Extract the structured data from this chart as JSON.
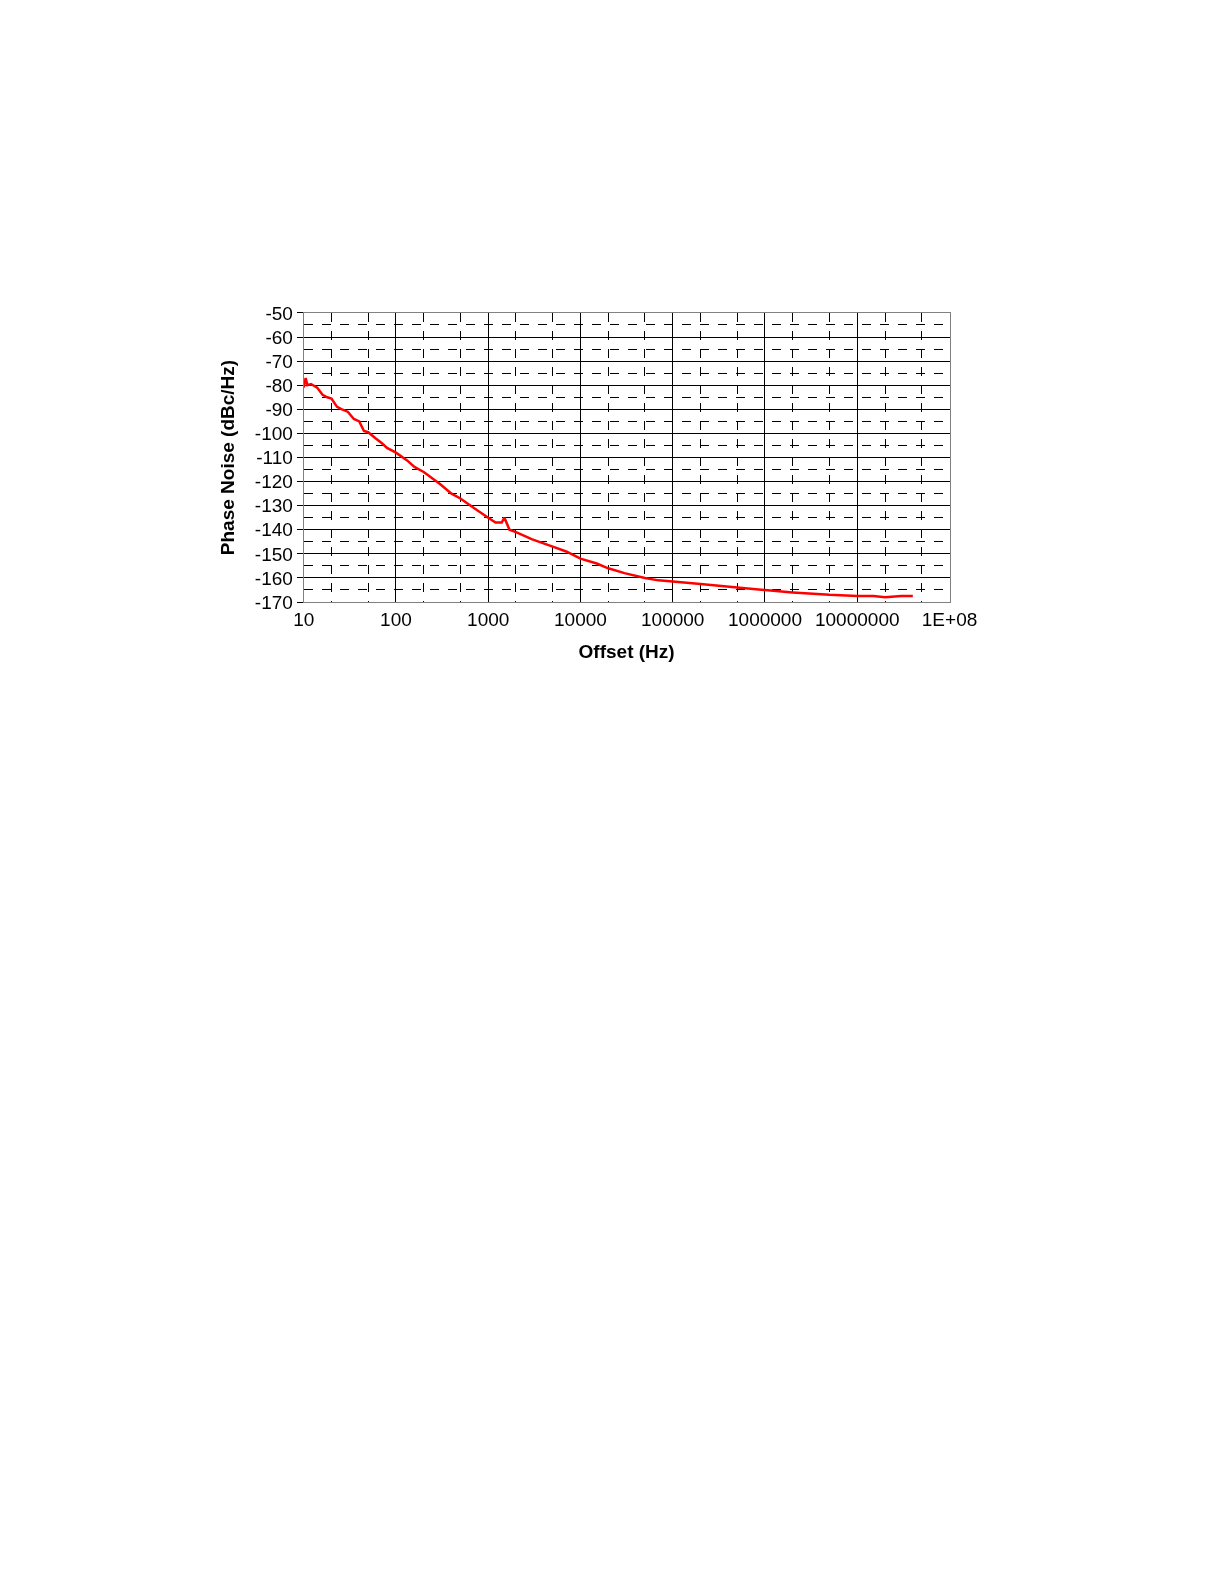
{
  "chart_data": {
    "type": "line",
    "xlabel": "Offset (Hz)",
    "ylabel": "Phase Noise (dBc/Hz)",
    "log": "x",
    "grid": true,
    "line_style": "solid",
    "marker": "none",
    "x": [
      10,
      10.5,
      11,
      12,
      14,
      16,
      18,
      20,
      23,
      26,
      30,
      35,
      40,
      45,
      50,
      60,
      70,
      80,
      100,
      130,
      160,
      200,
      300,
      400,
      500,
      700,
      1000,
      1200,
      1400,
      1500,
      1700,
      2000,
      3000,
      5000,
      7000,
      10000,
      15000,
      20000,
      30000,
      50000,
      70000,
      100000,
      200000,
      500000,
      1000000,
      2000000,
      5000000,
      10000000,
      15000000,
      20000000,
      30000000,
      40000000
    ],
    "series": [
      {
        "color": "#ff0000",
        "values": [
          -81,
          -77,
          -80,
          -79.5,
          -81,
          -84,
          -85,
          -85.5,
          -89,
          -90,
          -91,
          -94,
          -95,
          -99,
          -99.5,
          -102,
          -104,
          -106,
          -108,
          -111,
          -114,
          -116,
          -121,
          -125,
          -127,
          -131,
          -135,
          -137,
          -137,
          -135,
          -140,
          -141,
          -144,
          -147,
          -149,
          -152,
          -154,
          -156,
          -158,
          -160,
          -161,
          -161.5,
          -162.5,
          -164,
          -165,
          -166,
          -167,
          -167.5,
          -167.5,
          -168,
          -167.5,
          -167.5
        ]
      }
    ],
    "xlim": [
      10,
      100000000
    ],
    "xticks": [
      10,
      100,
      1000,
      10000,
      100000,
      1000000,
      10000000,
      {
        "value": 100000000,
        "label": "1E+08"
      }
    ],
    "ylim": [
      -170,
      -50
    ],
    "yticks": [
      -50,
      -60,
      -70,
      -80,
      -90,
      -100,
      -110,
      -120,
      -130,
      -140,
      -150,
      -160,
      -170
    ]
  }
}
